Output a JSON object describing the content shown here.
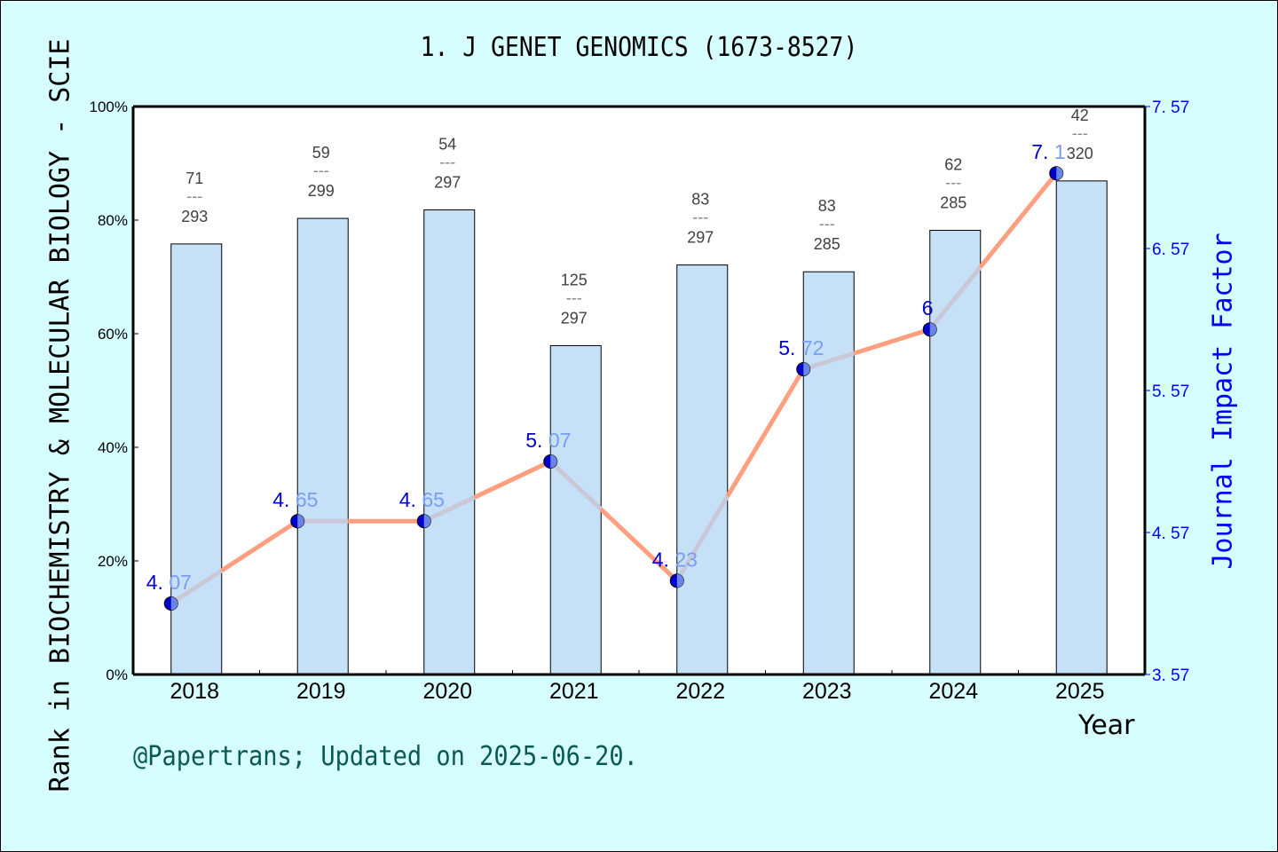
{
  "title": "1. J GENET GENOMICS (1673-8527)",
  "footer": "@Papertrans; Updated on 2025-06-20.",
  "axes": {
    "left_label": "Rank in BIOCHEMISTRY & MOLECULAR BIOLOGY - SCIE",
    "right_label": "Journal Impact Factor",
    "x_label": "Year",
    "left_ticks": [
      "0%",
      "20%",
      "40%",
      "60%",
      "80%",
      "100%"
    ],
    "right_ticks": [
      "3.57",
      "4.57",
      "5.57",
      "6.57",
      "7.57"
    ]
  },
  "colors": {
    "background": "#d6fefe",
    "plot_bg": "#ffffff",
    "bar_fill": "#c5e0f7",
    "line_orange": "#ff9f7f",
    "line_gray": "#c8c8d8",
    "marker": "#0000cc",
    "if_label_dark": "#0000cc",
    "if_label_light": "#7b9cf0",
    "rank_label": "#404040",
    "right_axis": "#0000ff",
    "footer": "#0a5a52"
  },
  "chart_data": {
    "type": "bar+line",
    "title": "1. J GENET GENOMICS (1673-8527)",
    "xlabel": "Year",
    "ylabel": "Rank in BIOCHEMISTRY & MOLECULAR BIOLOGY - SCIE",
    "y2label": "Journal Impact Factor",
    "categories": [
      "2018",
      "2019",
      "2020",
      "2021",
      "2022",
      "2023",
      "2024",
      "2025"
    ],
    "ylim": [
      0,
      100
    ],
    "y2lim": [
      3.57,
      7.57
    ],
    "grid": false,
    "series": [
      {
        "name": "Rank percentile (bar)",
        "type": "bar",
        "axis": "left",
        "values": [
          75.8,
          80.3,
          81.8,
          57.9,
          72.1,
          70.9,
          78.2,
          86.9
        ],
        "rank": [
          71,
          59,
          54,
          125,
          83,
          83,
          62,
          42
        ],
        "total": [
          293,
          299,
          297,
          297,
          297,
          285,
          285,
          320
        ]
      },
      {
        "name": "Journal Impact Factor (line)",
        "type": "line",
        "axis": "right",
        "values": [
          4.07,
          4.65,
          4.65,
          5.07,
          4.23,
          5.72,
          6.0,
          7.1
        ],
        "labels": [
          [
            "4.",
            "07"
          ],
          [
            "4.",
            "65"
          ],
          [
            "4.",
            "65"
          ],
          [
            "5.",
            "07"
          ],
          [
            "4.",
            "23"
          ],
          [
            "5.",
            "72"
          ],
          [
            "6",
            ""
          ],
          [
            "7.",
            "1"
          ]
        ]
      }
    ]
  }
}
